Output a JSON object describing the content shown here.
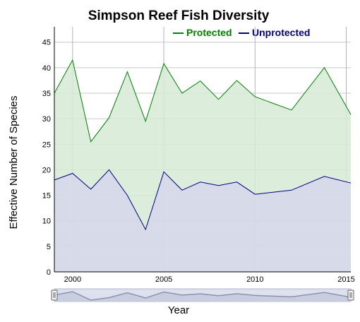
{
  "chart_data": {
    "type": "area",
    "title": "Simpson Reef Fish Diversity",
    "xlabel": "Year",
    "ylabel": "Effective Number of Species",
    "xlim": [
      1999,
      2015.25
    ],
    "ylim": [
      0,
      48
    ],
    "x_ticks": [
      2000,
      2005,
      2010,
      2015
    ],
    "y_ticks": [
      0,
      5,
      10,
      15,
      20,
      25,
      30,
      35,
      40,
      45
    ],
    "grid": true,
    "legend_placement": "top-center",
    "series": [
      {
        "name": "Protected",
        "color": "#008000",
        "fill": "#d6ead6",
        "x": [
          1999,
          2000,
          2001,
          2002,
          2003,
          2004,
          2005,
          2006,
          2007,
          2008,
          2009,
          2010,
          2012,
          2013.8,
          2015.25
        ],
        "values": [
          35,
          41.5,
          25.5,
          30.2,
          39.2,
          29.5,
          40.8,
          35,
          37.4,
          33.8,
          37.5,
          34.3,
          31.7,
          40,
          30.8
        ]
      },
      {
        "name": "Unprotected",
        "color": "#000080",
        "fill": "#d6d6ea",
        "x": [
          1999,
          2000,
          2001,
          2002,
          2003,
          2004,
          2005,
          2006,
          2007,
          2008,
          2009,
          2010,
          2012,
          2013.8,
          2015.25
        ],
        "values": [
          18,
          19.3,
          16.2,
          20,
          15,
          8.3,
          19.6,
          16,
          17.6,
          16.9,
          17.6,
          15.2,
          16,
          18.7,
          17.4
        ]
      }
    ]
  },
  "navigator": {
    "x": [
      1999,
      2000,
      2001,
      2002,
      2003,
      2004,
      2005,
      2006,
      2007,
      2008,
      2009,
      2010,
      2012,
      2013.8,
      2015.25
    ],
    "values": [
      35,
      41.5,
      25.5,
      30.2,
      39.2,
      29.5,
      40.8,
      35,
      37.4,
      33.8,
      37.5,
      34.3,
      31.7,
      40,
      30.8
    ]
  }
}
